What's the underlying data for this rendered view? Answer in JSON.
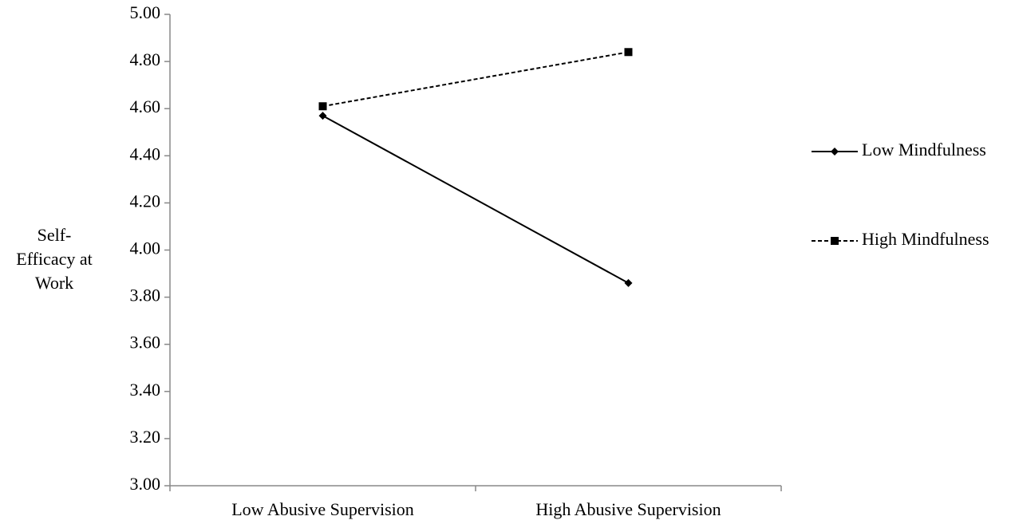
{
  "chart_data": {
    "type": "line",
    "ylabel": [
      "Self-",
      "Efficacy at",
      "Work"
    ],
    "categories": [
      "Low Abusive Supervision",
      "High Abusive Supervision"
    ],
    "series": [
      {
        "name": "Low Mindfulness",
        "color": "#000000",
        "line_style": "solid",
        "marker": "diamond",
        "values": [
          4.57,
          3.86
        ]
      },
      {
        "name": "High Mindfulness",
        "color": "#000000",
        "line_style": "dashed",
        "marker": "square",
        "values": [
          4.61,
          4.84
        ]
      }
    ],
    "ylim": [
      3.0,
      5.0
    ],
    "yticks": [
      {
        "value": 3.0,
        "label": "3.00"
      },
      {
        "value": 3.2,
        "label": "3.20"
      },
      {
        "value": 3.4,
        "label": "3.40"
      },
      {
        "value": 3.6,
        "label": "3.60"
      },
      {
        "value": 3.8,
        "label": "3.80"
      },
      {
        "value": 4.0,
        "label": "4.00"
      },
      {
        "value": 4.2,
        "label": "4.20"
      },
      {
        "value": 4.4,
        "label": "4.40"
      },
      {
        "value": 4.6,
        "label": "4.60"
      },
      {
        "value": 4.8,
        "label": "4.80"
      },
      {
        "value": 5.0,
        "label": "5.00"
      }
    ],
    "grid": false,
    "legend": "right"
  }
}
